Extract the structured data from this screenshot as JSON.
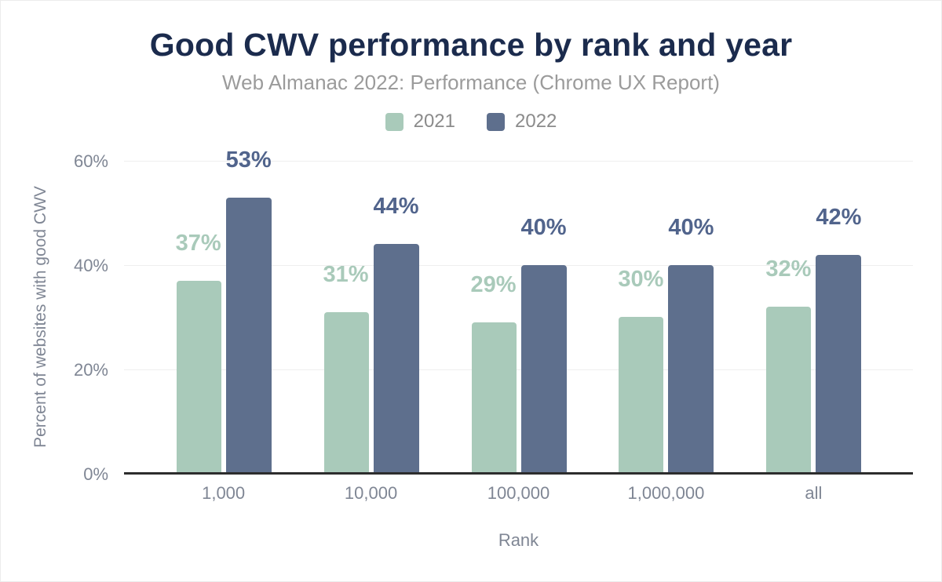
{
  "chart_data": {
    "type": "bar",
    "title": "Good CWV performance by rank and year",
    "subtitle": "Web Almanac 2022: Performance (Chrome UX Report)",
    "xlabel": "Rank",
    "ylabel": "Percent of websites with good CWV",
    "categories": [
      "1,000",
      "10,000",
      "100,000",
      "1,000,000",
      "all"
    ],
    "series": [
      {
        "name": "2021",
        "color": "#a9caba",
        "label_color": "#a9caba",
        "values": [
          37,
          31,
          29,
          30,
          32
        ]
      },
      {
        "name": "2022",
        "color": "#5e6f8d",
        "label_color": "#51648c",
        "values": [
          53,
          44,
          40,
          40,
          42
        ]
      }
    ],
    "label_suffix": "%",
    "y_ticks": [
      "0%",
      "20%",
      "40%",
      "60%"
    ],
    "ylim": [
      0,
      60
    ],
    "grid": true,
    "legend_position": "top",
    "colors": {
      "title": "#1b2b4d",
      "subtitle": "#9b9b9b",
      "axis_text": "#7f8694",
      "gridline": "#efefef",
      "baseline": "#2d2d2d"
    }
  }
}
